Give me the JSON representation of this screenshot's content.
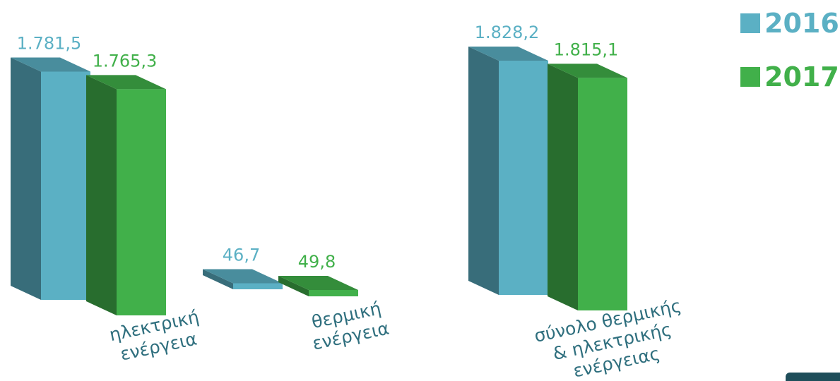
{
  "legend": [
    {
      "label": "2016",
      "color": "#5bb0c4"
    },
    {
      "label": "2017",
      "color": "#41b04a"
    }
  ],
  "chart_data": {
    "type": "bar",
    "categories": [
      [
        "ηλεκτρική",
        "ενέργεια"
      ],
      [
        "θερμική",
        "ενέργεια"
      ],
      [
        "σύνολο θερμικής",
        "& ηλεκτρικής",
        "ενέργειας"
      ]
    ],
    "series": [
      {
        "name": "2016",
        "values": [
          1781.5,
          46.7,
          1828.2
        ],
        "labels": [
          "1.781,5",
          "46,7",
          "1.828,2"
        ],
        "color": "#5bb0c4"
      },
      {
        "name": "2017",
        "values": [
          1765.3,
          49.8,
          1815.1
        ],
        "labels": [
          "1.765,3",
          "49,8",
          "1.815,1"
        ],
        "color": "#41b04a"
      }
    ],
    "ylim": [
      0,
      1900
    ],
    "grid": false,
    "legend_position": "top-right"
  }
}
